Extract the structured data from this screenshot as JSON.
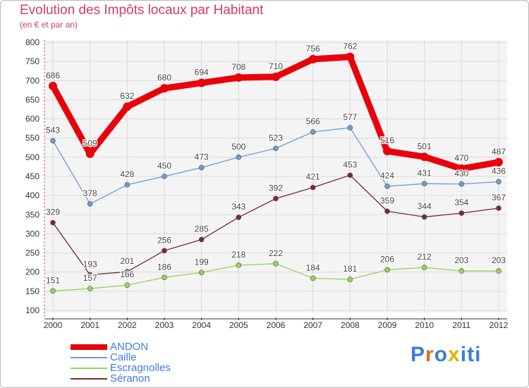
{
  "title": "Evolution des Impôts locaux par Habitant",
  "subtitle": "(en € et par an)",
  "logo": {
    "letters": [
      "P",
      "r",
      "o",
      "x",
      "i",
      "t",
      "i"
    ],
    "colors": [
      "#3a7fd5",
      "#e96a17",
      "#3a7fd5",
      "#e0b500",
      "#3a7fd5",
      "#3a7fd5",
      "#3a7fd5"
    ]
  },
  "chart_data": {
    "type": "line",
    "title": "Evolution des Impôts locaux par Habitant",
    "subtitle": "(en € et par an)",
    "x": [
      "2000",
      "2001",
      "2002",
      "2003",
      "2004",
      "2005",
      "2006",
      "2007",
      "2008",
      "2009",
      "2010",
      "2011",
      "2012"
    ],
    "ylim": [
      100,
      800
    ],
    "yticks": [
      100,
      150,
      200,
      250,
      300,
      350,
      400,
      450,
      500,
      550,
      600,
      650,
      700,
      750,
      800
    ],
    "grid": true,
    "series": [
      {
        "name": "ANDON",
        "color": "#e8000b",
        "values": [
          686,
          509,
          632,
          680,
          694,
          708,
          710,
          756,
          762,
          516,
          501,
          470,
          487
        ],
        "labels": [
          "686",
          "509",
          "632",
          "680",
          "694",
          "708",
          "710",
          "756",
          "762",
          "516",
          "501",
          "470",
          "487"
        ]
      },
      {
        "name": "Caille",
        "color": "#6b9ed3",
        "values": [
          543,
          378,
          428,
          450,
          473,
          500,
          523,
          566,
          577,
          424,
          431,
          430,
          436
        ],
        "labels": [
          "543",
          "378",
          "428",
          "450",
          "473",
          "500",
          "523",
          "566",
          "577",
          "424",
          "431",
          "430",
          "436"
        ]
      },
      {
        "name": "Escragnolles",
        "color": "#96d35f",
        "values": [
          151,
          157,
          166,
          186,
          199,
          218,
          222,
          184,
          181,
          206,
          212,
          203,
          203
        ],
        "labels": [
          "151",
          "157",
          "166",
          "186",
          "199",
          "218",
          "222",
          "184",
          "181",
          "206",
          "212",
          "203",
          "203"
        ]
      },
      {
        "name": "Séranon",
        "color": "#7a2b31",
        "values": [
          329,
          193,
          201,
          256,
          285,
          343,
          392,
          421,
          453,
          359,
          344,
          354,
          367
        ],
        "labels": [
          "329",
          "193",
          "201",
          "256",
          "285",
          "343",
          "392",
          "421",
          "453",
          "359",
          "344",
          "354",
          "367"
        ]
      }
    ]
  }
}
